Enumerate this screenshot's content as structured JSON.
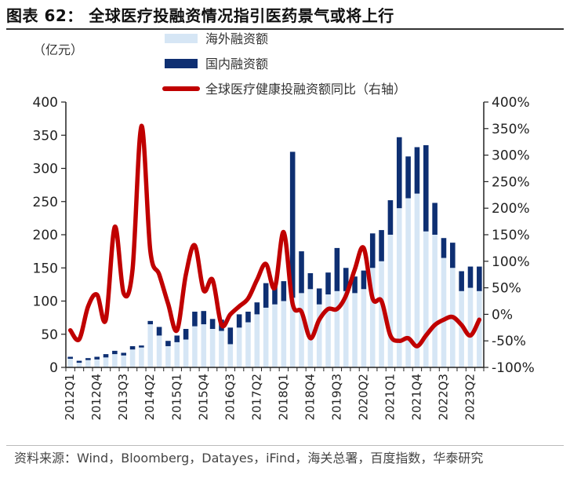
{
  "header": {
    "title": "图表 62：  全球医疗投融资情况指引医药景气或将上行"
  },
  "footer": {
    "source": "资料来源：Wind，Bloomberg，Datayes，iFind，海关总署，百度指数，华泰研究"
  },
  "colors": {
    "overseas": "#d6e6f5",
    "domestic": "#0e2f72",
    "line": "#c00000",
    "axis": "#222222"
  },
  "chart_data": {
    "type": "bar+line",
    "title": "全球医疗投融资情况指引医药景气或将上行",
    "y_unit_label": "（亿元）",
    "y_left": {
      "min": 0,
      "max": 400,
      "ticks": [
        "0",
        "50",
        "100",
        "150",
        "200",
        "250",
        "300",
        "350",
        "400"
      ]
    },
    "y_right": {
      "min": -100,
      "max": 400,
      "ticks": [
        "-100%",
        "-50%",
        "0%",
        "50%",
        "100%",
        "150%",
        "200%",
        "250%",
        "300%",
        "350%",
        "400%"
      ]
    },
    "legend": [
      "海外融资额",
      "国内融资额",
      "全球医疗健康投融资额同比（右轴）"
    ],
    "legend_position": "top",
    "x_tick_labels": [
      "2012Q1",
      "2012Q4",
      "2013Q3",
      "2014Q2",
      "2015Q1",
      "2015Q4",
      "2016Q3",
      "2017Q2",
      "2018Q1",
      "2018Q4",
      "2019Q3",
      "2020Q2",
      "2021Q1",
      "2021Q4",
      "2022Q3",
      "2023Q2"
    ],
    "categories": [
      "2012Q1",
      "2012Q2",
      "2012Q3",
      "2012Q4",
      "2013Q1",
      "2013Q2",
      "2013Q3",
      "2013Q4",
      "2014Q1",
      "2014Q2",
      "2014Q3",
      "2014Q4",
      "2015Q1",
      "2015Q2",
      "2015Q3",
      "2015Q4",
      "2016Q1",
      "2016Q2",
      "2016Q3",
      "2016Q4",
      "2017Q1",
      "2017Q2",
      "2017Q3",
      "2017Q4",
      "2018Q1",
      "2018Q2",
      "2018Q3",
      "2018Q4",
      "2019Q1",
      "2019Q2",
      "2019Q3",
      "2019Q4",
      "2020Q1",
      "2020Q2",
      "2020Q3",
      "2020Q4",
      "2021Q1",
      "2021Q2",
      "2021Q3",
      "2021Q4",
      "2022Q1",
      "2022Q2",
      "2022Q3",
      "2022Q4",
      "2023Q1",
      "2023Q2",
      "2023Q3"
    ],
    "series": [
      {
        "name": "海外融资额",
        "type": "bar-stack-bottom",
        "values": [
          13,
          7,
          11,
          12,
          15,
          20,
          18,
          27,
          30,
          65,
          48,
          32,
          38,
          42,
          62,
          65,
          58,
          55,
          35,
          60,
          68,
          80,
          90,
          95,
          100,
          105,
          112,
          118,
          95,
          110,
          115,
          115,
          112,
          118,
          150,
          160,
          200,
          240,
          255,
          262,
          205,
          200,
          165,
          150,
          115,
          120,
          115
        ]
      },
      {
        "name": "国内融资额",
        "type": "bar-stack-top",
        "values": [
          3,
          3,
          3,
          4,
          5,
          5,
          4,
          5,
          3,
          5,
          13,
          8,
          10,
          16,
          22,
          20,
          15,
          17,
          25,
          20,
          16,
          18,
          37,
          32,
          30,
          220,
          63,
          24,
          24,
          33,
          65,
          35,
          25,
          28,
          52,
          47,
          52,
          107,
          63,
          70,
          130,
          48,
          30,
          38,
          30,
          32,
          37
        ]
      },
      {
        "name": "全球医疗健康投融资额同比（右轴）",
        "type": "line",
        "axis": "right",
        "values": [
          -30,
          -47,
          15,
          37,
          -10,
          165,
          40,
          85,
          355,
          120,
          75,
          20,
          -30,
          75,
          130,
          45,
          65,
          -20,
          0,
          15,
          30,
          65,
          95,
          50,
          155,
          20,
          5,
          -45,
          -10,
          10,
          10,
          35,
          85,
          125,
          30,
          25,
          -40,
          -50,
          -45,
          -60,
          -40,
          -20,
          -10,
          -5,
          -20,
          -40,
          -10
        ]
      }
    ]
  }
}
